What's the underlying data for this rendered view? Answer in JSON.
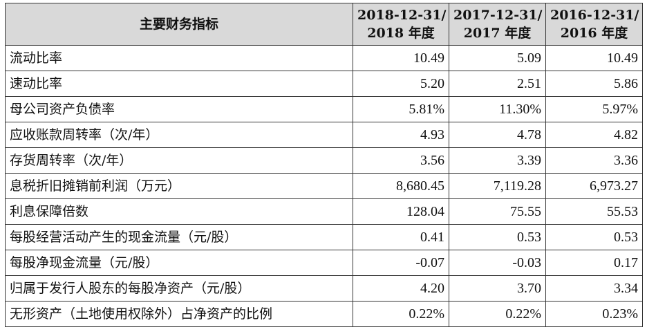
{
  "table": {
    "header": {
      "indicator": "主要财务指标",
      "periods": [
        {
          "line1": "2018-12-31/",
          "line2": "2018 年度"
        },
        {
          "line1": "2017-12-31/",
          "line2": "2017 年度"
        },
        {
          "line1": "2016-12-31/",
          "line2": "2016 年度"
        }
      ]
    },
    "rows": [
      {
        "label": "流动比率",
        "values": [
          "10.49",
          "5.09",
          "10.49"
        ]
      },
      {
        "label": "速动比率",
        "values": [
          "5.20",
          "2.51",
          "5.86"
        ]
      },
      {
        "label": "母公司资产负债率",
        "values": [
          "5.81%",
          "11.30%",
          "5.97%"
        ]
      },
      {
        "label": "应收账款周转率（次/年）",
        "values": [
          "4.93",
          "4.78",
          "4.82"
        ]
      },
      {
        "label": "存货周转率（次/年）",
        "values": [
          "3.56",
          "3.39",
          "3.36"
        ]
      },
      {
        "label": "息税折旧摊销前利润（万元）",
        "values": [
          "8,680.45",
          "7,119.28",
          "6,973.27"
        ]
      },
      {
        "label": "利息保障倍数",
        "values": [
          "128.04",
          "75.55",
          "55.53"
        ]
      },
      {
        "label": "每股经营活动产生的现金流量（元/股）",
        "values": [
          "0.41",
          "0.53",
          "0.53"
        ]
      },
      {
        "label": "每股净现金流量（元/股）",
        "values": [
          "-0.07",
          "-0.03",
          "0.17"
        ]
      },
      {
        "label": "归属于发行人股东的每股净资产（元/股）",
        "values": [
          "4.20",
          "3.70",
          "3.34"
        ]
      },
      {
        "label": "无形资产（土地使用权除外）占净资产的比例",
        "values": [
          "0.22%",
          "0.22%",
          "0.23%"
        ]
      }
    ]
  }
}
